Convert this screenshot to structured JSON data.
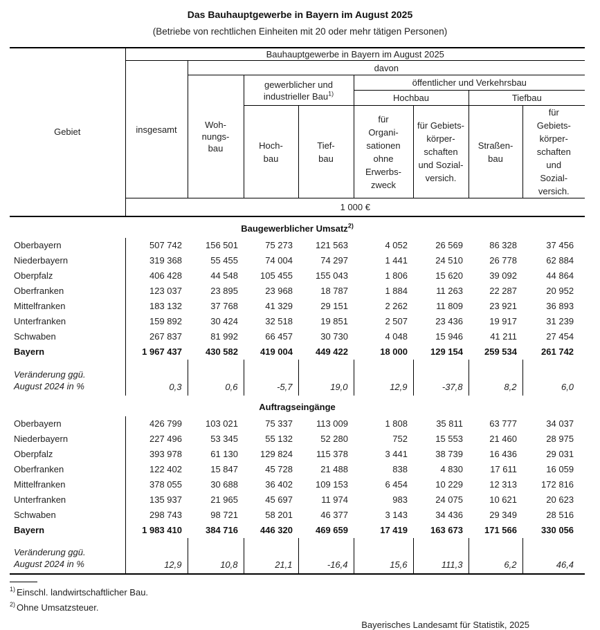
{
  "title": "Das Bauhauptgewerbe in Bayern im August 2025",
  "subtitle": "(Betriebe von rechtlichen Einheiten mit 20 oder mehr tätigen Personen)",
  "header": {
    "top": "Bauhauptgewerbe in Bayern im August 2025",
    "davon": "davon",
    "gebiet": "Gebiet",
    "insgesamt": "insgesamt",
    "wohnungsbau": "Woh-\nnungs-\nbau",
    "gewerblich": "gewerblicher und\nindustrieller Bau",
    "gewerblich_sup": "1)",
    "oeffentlich": "öffentlicher und Verkehrsbau",
    "hochbau_group": "Hochbau",
    "tiefbau_group": "Tiefbau",
    "hochbau": "Hoch-\nbau",
    "tiefbau": "Tief-\nbau",
    "fuer_org": "für\nOrgani-\nsationen\nohne\nErwerbs-\nzweck",
    "fuer_gebiets_hoch": "für Gebiets-\nkörper-\nschaften\nund Sozial-\nversich.",
    "strassenbau": "Straßen-\nbau",
    "fuer_gebiets_tief": "für\nGebiets-\nkörper-\nschaften\nund\nSozial-\nversich.",
    "unit": "1 000 €"
  },
  "sections": [
    {
      "heading": "Baugewerblicher Umsatz",
      "heading_sup": "2)",
      "rows": [
        {
          "label": "Oberbayern",
          "bold": false,
          "values": [
            "507 742",
            "156 501",
            "75 273",
            "121 563",
            "4 052",
            "26 569",
            "86 328",
            "37 456"
          ]
        },
        {
          "label": "Niederbayern",
          "bold": false,
          "values": [
            "319 368",
            "55 455",
            "74 004",
            "74 297",
            "1 441",
            "24 510",
            "26 778",
            "62 884"
          ]
        },
        {
          "label": "Oberpfalz",
          "bold": false,
          "values": [
            "406 428",
            "44 548",
            "105 455",
            "155 043",
            "1 806",
            "15 620",
            "39 092",
            "44 864"
          ]
        },
        {
          "label": "Oberfranken",
          "bold": false,
          "values": [
            "123 037",
            "23 895",
            "23 968",
            "18 787",
            "1 884",
            "11 263",
            "22 287",
            "20 952"
          ]
        },
        {
          "label": "Mittelfranken",
          "bold": false,
          "values": [
            "183 132",
            "37 768",
            "41 329",
            "29 151",
            "2 262",
            "11 809",
            "23 921",
            "36 893"
          ]
        },
        {
          "label": "Unterfranken",
          "bold": false,
          "values": [
            "159 892",
            "30 424",
            "32 518",
            "19 851",
            "2 507",
            "23 436",
            "19 917",
            "31 239"
          ]
        },
        {
          "label": "Schwaben",
          "bold": false,
          "values": [
            "267 837",
            "81 992",
            "66 457",
            "30 730",
            "4 048",
            "15 946",
            "41 211",
            "27 454"
          ]
        },
        {
          "label": "Bayern",
          "bold": true,
          "values": [
            "1 967 437",
            "430 582",
            "419 004",
            "449 422",
            "18 000",
            "129 154",
            "259 534",
            "261 742"
          ]
        }
      ],
      "change_label": "Veränderung ggü.\nAugust 2024 in %",
      "change_values": [
        "0,3",
        "0,6",
        "-5,7",
        "19,0",
        "12,9",
        "-37,8",
        "8,2",
        "6,0"
      ]
    },
    {
      "heading": "Auftragseingänge",
      "heading_sup": "",
      "rows": [
        {
          "label": "Oberbayern",
          "bold": false,
          "values": [
            "426 799",
            "103 021",
            "75 337",
            "113 009",
            "1 808",
            "35 811",
            "63 777",
            "34 037"
          ]
        },
        {
          "label": "Niederbayern",
          "bold": false,
          "values": [
            "227 496",
            "53 345",
            "55 132",
            "52 280",
            "752",
            "15 553",
            "21 460",
            "28 975"
          ]
        },
        {
          "label": "Oberpfalz",
          "bold": false,
          "values": [
            "393 978",
            "61 130",
            "129 824",
            "115 378",
            "3 441",
            "38 739",
            "16 436",
            "29 031"
          ]
        },
        {
          "label": "Oberfranken",
          "bold": false,
          "values": [
            "122 402",
            "15 847",
            "45 728",
            "21 488",
            "838",
            "4 830",
            "17 611",
            "16 059"
          ]
        },
        {
          "label": "Mittelfranken",
          "bold": false,
          "values": [
            "378 055",
            "30 688",
            "36 402",
            "109 153",
            "6 454",
            "10 229",
            "12 313",
            "172 816"
          ]
        },
        {
          "label": "Unterfranken",
          "bold": false,
          "values": [
            "135 937",
            "21 965",
            "45 697",
            "11 974",
            "983",
            "24 075",
            "10 621",
            "20 623"
          ]
        },
        {
          "label": "Schwaben",
          "bold": false,
          "values": [
            "298 743",
            "98 721",
            "58 201",
            "46 377",
            "3 143",
            "34 436",
            "29 349",
            "28 516"
          ]
        },
        {
          "label": "Bayern",
          "bold": true,
          "values": [
            "1 983 410",
            "384 716",
            "446 320",
            "469 659",
            "17 419",
            "163 673",
            "171 566",
            "330 056"
          ]
        }
      ],
      "change_label": "Veränderung ggü.\nAugust 2024 in %",
      "change_values": [
        "12,9",
        "10,8",
        "21,1",
        "-16,4",
        "15,6",
        "111,3",
        "6,2",
        "46,4"
      ]
    }
  ],
  "footnotes": [
    {
      "sup": "1)",
      "text": "Einschl. landwirtschaftlicher Bau."
    },
    {
      "sup": "2)",
      "text": "Ohne Umsatzsteuer."
    }
  ],
  "source": "Bayerisches Landesamt für Statistik, 2025"
}
